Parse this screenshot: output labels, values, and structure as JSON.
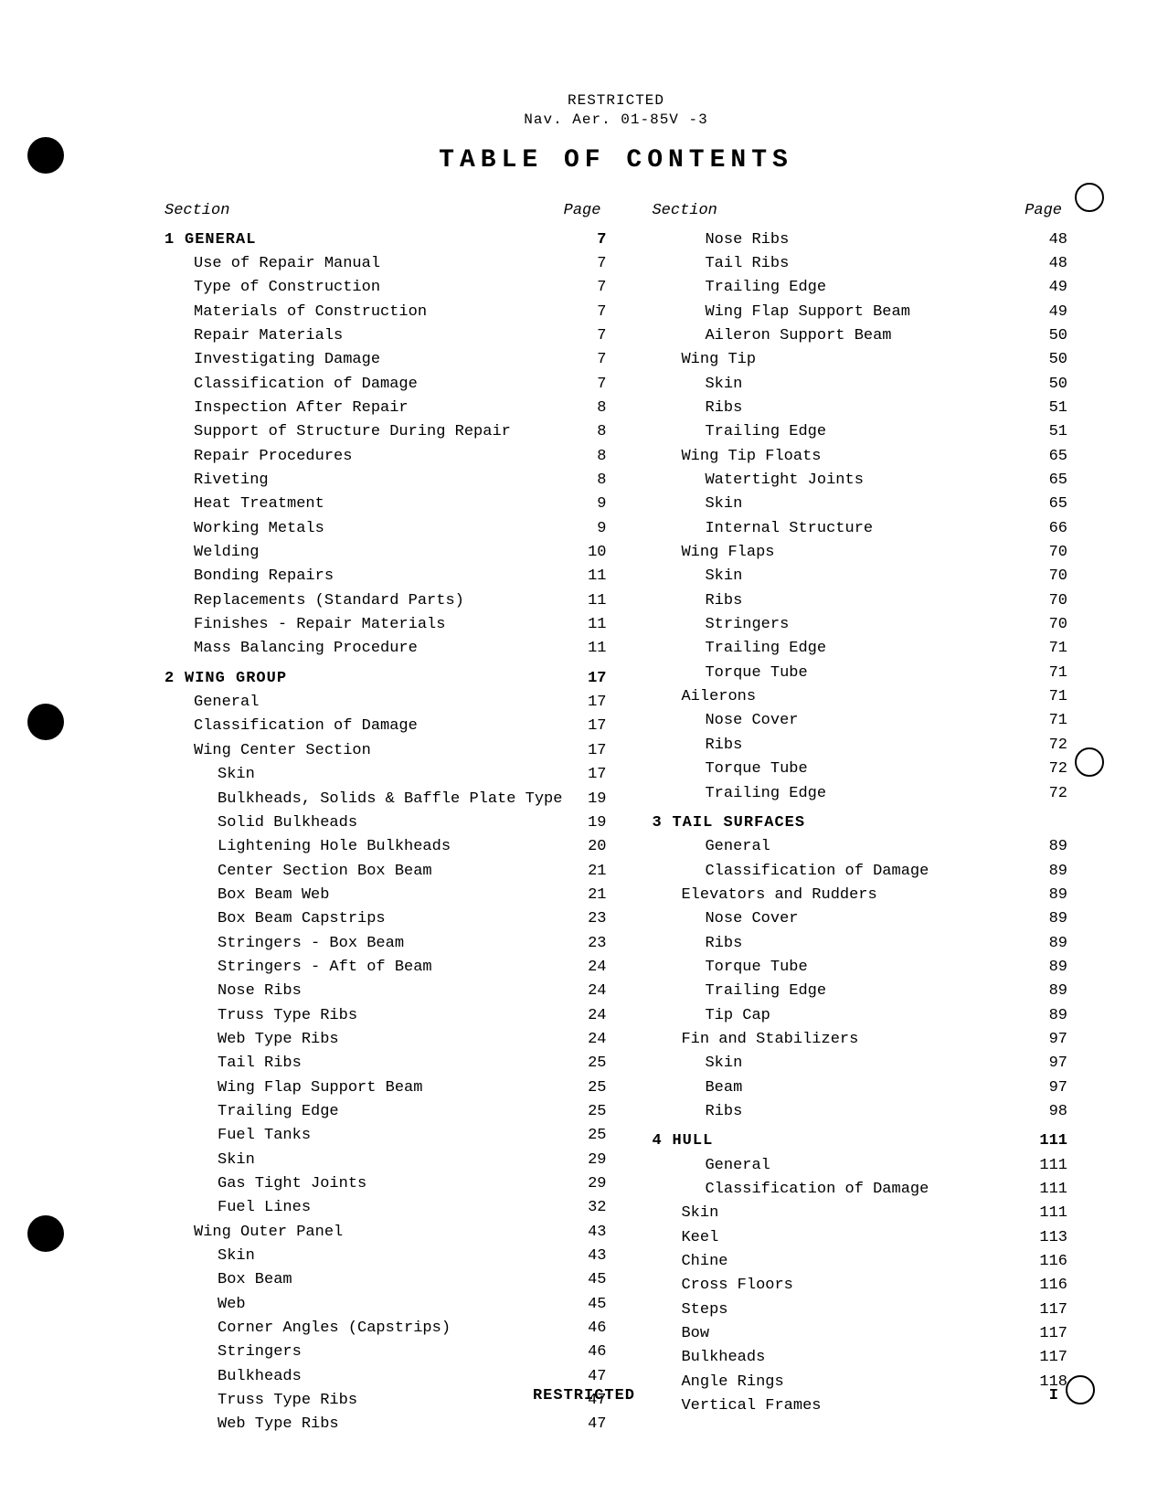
{
  "header": {
    "classification_top": "RESTRICTED",
    "doc_ref": "Nav. Aer. 01-85V -3",
    "title": "TABLE OF CONTENTS",
    "col_section": "Section",
    "col_page": "Page",
    "classification_bottom": "RESTRICTED",
    "page_roman": "I"
  },
  "left_col": [
    {
      "type": "section",
      "num": "1",
      "label": "GENERAL",
      "page": "7"
    },
    {
      "type": "entry",
      "indent": 1,
      "label": "Use of Repair Manual",
      "page": "7"
    },
    {
      "type": "entry",
      "indent": 1,
      "label": "Type of Construction",
      "page": "7"
    },
    {
      "type": "entry",
      "indent": 1,
      "label": "Materials of Construction",
      "page": "7"
    },
    {
      "type": "entry",
      "indent": 1,
      "label": "Repair Materials",
      "page": "7"
    },
    {
      "type": "entry",
      "indent": 1,
      "label": "Investigating Damage",
      "page": "7"
    },
    {
      "type": "entry",
      "indent": 1,
      "label": "Classification of Damage",
      "page": "7"
    },
    {
      "type": "entry",
      "indent": 1,
      "label": "Inspection After Repair",
      "page": "8"
    },
    {
      "type": "entry",
      "indent": 1,
      "label": "Support of Structure During Repair",
      "page": "8"
    },
    {
      "type": "entry",
      "indent": 1,
      "label": "Repair Procedures",
      "page": "8"
    },
    {
      "type": "entry",
      "indent": 1,
      "label": "Riveting",
      "page": "8"
    },
    {
      "type": "entry",
      "indent": 1,
      "label": "Heat Treatment",
      "page": "9"
    },
    {
      "type": "entry",
      "indent": 1,
      "label": "Working Metals",
      "page": "9"
    },
    {
      "type": "entry",
      "indent": 1,
      "label": "Welding",
      "page": "10"
    },
    {
      "type": "entry",
      "indent": 1,
      "label": "Bonding Repairs",
      "page": "11"
    },
    {
      "type": "entry",
      "indent": 1,
      "label": "Replacements (Standard Parts)",
      "page": "11"
    },
    {
      "type": "entry",
      "indent": 1,
      "label": "Finishes - Repair Materials",
      "page": "11"
    },
    {
      "type": "entry",
      "indent": 1,
      "label": "Mass Balancing Procedure",
      "page": "11"
    },
    {
      "type": "section",
      "num": "2",
      "label": "WING GROUP",
      "page": "17"
    },
    {
      "type": "entry",
      "indent": 1,
      "label": "General",
      "page": "17"
    },
    {
      "type": "entry",
      "indent": 1,
      "label": "Classification of Damage",
      "page": "17"
    },
    {
      "type": "entry",
      "indent": 1,
      "label": "Wing Center Section",
      "page": "17"
    },
    {
      "type": "entry",
      "indent": 2,
      "label": "Skin",
      "page": "17"
    },
    {
      "type": "entry",
      "indent": 2,
      "label": "Bulkheads, Solids & Baffle Plate Type",
      "page": "19"
    },
    {
      "type": "entry",
      "indent": 2,
      "label": "Solid Bulkheads",
      "page": "19"
    },
    {
      "type": "entry",
      "indent": 2,
      "label": "Lightening Hole Bulkheads",
      "page": "20"
    },
    {
      "type": "entry",
      "indent": 2,
      "label": "Center Section Box Beam",
      "page": "21"
    },
    {
      "type": "entry",
      "indent": 2,
      "label": "Box Beam Web",
      "page": "21"
    },
    {
      "type": "entry",
      "indent": 2,
      "label": "Box Beam Capstrips",
      "page": "23"
    },
    {
      "type": "entry",
      "indent": 2,
      "label": "Stringers - Box Beam",
      "page": "23"
    },
    {
      "type": "entry",
      "indent": 2,
      "label": "Stringers - Aft of Beam",
      "page": "24"
    },
    {
      "type": "entry",
      "indent": 2,
      "label": "Nose Ribs",
      "page": "24"
    },
    {
      "type": "entry",
      "indent": 2,
      "label": "Truss Type Ribs",
      "page": "24"
    },
    {
      "type": "entry",
      "indent": 2,
      "label": "Web Type Ribs",
      "page": "24"
    },
    {
      "type": "entry",
      "indent": 2,
      "label": "Tail Ribs",
      "page": "25"
    },
    {
      "type": "entry",
      "indent": 2,
      "label": "Wing Flap Support Beam",
      "page": "25"
    },
    {
      "type": "entry",
      "indent": 2,
      "label": "Trailing Edge",
      "page": "25"
    },
    {
      "type": "entry",
      "indent": 2,
      "label": "Fuel Tanks",
      "page": "25"
    },
    {
      "type": "entry",
      "indent": 2,
      "label": "Skin",
      "page": "29"
    },
    {
      "type": "entry",
      "indent": 2,
      "label": "Gas Tight Joints",
      "page": "29"
    },
    {
      "type": "entry",
      "indent": 2,
      "label": "Fuel Lines",
      "page": "32"
    },
    {
      "type": "entry",
      "indent": 1,
      "label": "Wing Outer Panel",
      "page": "43"
    },
    {
      "type": "entry",
      "indent": 2,
      "label": "Skin",
      "page": "43"
    },
    {
      "type": "entry",
      "indent": 2,
      "label": "Box Beam",
      "page": "45"
    },
    {
      "type": "entry",
      "indent": 2,
      "label": "Web",
      "page": "45"
    },
    {
      "type": "entry",
      "indent": 2,
      "label": "Corner Angles (Capstrips)",
      "page": "46"
    },
    {
      "type": "entry",
      "indent": 2,
      "label": "Stringers",
      "page": "46"
    },
    {
      "type": "entry",
      "indent": 2,
      "label": "Bulkheads",
      "page": "47"
    },
    {
      "type": "entry",
      "indent": 2,
      "label": "Truss Type Ribs",
      "page": "47"
    },
    {
      "type": "entry",
      "indent": 2,
      "label": "Web Type Ribs",
      "page": "47"
    }
  ],
  "right_col": [
    {
      "type": "entry",
      "indent": 2,
      "label": "Nose Ribs",
      "page": "48"
    },
    {
      "type": "entry",
      "indent": 2,
      "label": "Tail Ribs",
      "page": "48"
    },
    {
      "type": "entry",
      "indent": 2,
      "label": "Trailing Edge",
      "page": "49"
    },
    {
      "type": "entry",
      "indent": 2,
      "label": "Wing Flap Support Beam",
      "page": "49"
    },
    {
      "type": "entry",
      "indent": 2,
      "label": "Aileron Support Beam",
      "page": "50"
    },
    {
      "type": "entry",
      "indent": 1,
      "label": "Wing Tip",
      "page": "50"
    },
    {
      "type": "entry",
      "indent": 2,
      "label": "Skin",
      "page": "50"
    },
    {
      "type": "entry",
      "indent": 2,
      "label": "Ribs",
      "page": "51"
    },
    {
      "type": "entry",
      "indent": 2,
      "label": "Trailing Edge",
      "page": "51"
    },
    {
      "type": "entry",
      "indent": 1,
      "label": "Wing Tip Floats",
      "page": "65"
    },
    {
      "type": "entry",
      "indent": 2,
      "label": "Watertight Joints",
      "page": "65"
    },
    {
      "type": "entry",
      "indent": 2,
      "label": "Skin",
      "page": "65"
    },
    {
      "type": "entry",
      "indent": 2,
      "label": "Internal Structure",
      "page": "66"
    },
    {
      "type": "entry",
      "indent": 1,
      "label": "Wing Flaps",
      "page": "70"
    },
    {
      "type": "entry",
      "indent": 2,
      "label": "Skin",
      "page": "70"
    },
    {
      "type": "entry",
      "indent": 2,
      "label": "Ribs",
      "page": "70"
    },
    {
      "type": "entry",
      "indent": 2,
      "label": "Stringers",
      "page": "70"
    },
    {
      "type": "entry",
      "indent": 2,
      "label": "Trailing Edge",
      "page": "71"
    },
    {
      "type": "entry",
      "indent": 2,
      "label": "Torque Tube",
      "page": "71"
    },
    {
      "type": "entry",
      "indent": 1,
      "label": "Ailerons",
      "page": "71"
    },
    {
      "type": "entry",
      "indent": 2,
      "label": "Nose Cover",
      "page": "71"
    },
    {
      "type": "entry",
      "indent": 2,
      "label": "Ribs",
      "page": "72"
    },
    {
      "type": "entry",
      "indent": 2,
      "label": "Torque Tube",
      "page": "72"
    },
    {
      "type": "entry",
      "indent": 2,
      "label": "Trailing Edge",
      "page": "72"
    },
    {
      "type": "section",
      "num": "3",
      "label": "TAIL SURFACES",
      "page": ""
    },
    {
      "type": "entry",
      "indent": 2,
      "label": "General",
      "page": "89"
    },
    {
      "type": "entry",
      "indent": 2,
      "label": "Classification of Damage",
      "page": "89"
    },
    {
      "type": "entry",
      "indent": 1,
      "label": "Elevators and Rudders",
      "page": "89"
    },
    {
      "type": "entry",
      "indent": 2,
      "label": "Nose Cover",
      "page": "89"
    },
    {
      "type": "entry",
      "indent": 2,
      "label": "Ribs",
      "page": "89"
    },
    {
      "type": "entry",
      "indent": 2,
      "label": "Torque Tube",
      "page": "89"
    },
    {
      "type": "entry",
      "indent": 2,
      "label": "Trailing Edge",
      "page": "89"
    },
    {
      "type": "entry",
      "indent": 2,
      "label": "Tip Cap",
      "page": "89"
    },
    {
      "type": "entry",
      "indent": 1,
      "label": "Fin and Stabilizers",
      "page": "97"
    },
    {
      "type": "entry",
      "indent": 2,
      "label": "Skin",
      "page": "97"
    },
    {
      "type": "entry",
      "indent": 2,
      "label": "Beam",
      "page": "97"
    },
    {
      "type": "entry",
      "indent": 2,
      "label": "Ribs",
      "page": "98"
    },
    {
      "type": "section",
      "num": "4",
      "label": "HULL",
      "page": "111"
    },
    {
      "type": "entry",
      "indent": 2,
      "label": "General",
      "page": "111"
    },
    {
      "type": "entry",
      "indent": 2,
      "label": "Classification of Damage",
      "page": "111"
    },
    {
      "type": "entry",
      "indent": 1,
      "label": "Skin",
      "page": "111"
    },
    {
      "type": "entry",
      "indent": 1,
      "label": "Keel",
      "page": "113"
    },
    {
      "type": "entry",
      "indent": 1,
      "label": "Chine",
      "page": "116"
    },
    {
      "type": "entry",
      "indent": 1,
      "label": "Cross Floors",
      "page": "116"
    },
    {
      "type": "entry",
      "indent": 1,
      "label": "Steps",
      "page": "117"
    },
    {
      "type": "entry",
      "indent": 1,
      "label": "Bow",
      "page": "117"
    },
    {
      "type": "entry",
      "indent": 1,
      "label": "Bulkheads",
      "page": "117"
    },
    {
      "type": "entry",
      "indent": 1,
      "label": "Angle Rings",
      "page": "118"
    },
    {
      "type": "entry",
      "indent": 1,
      "label": "Vertical Frames",
      "page": ""
    }
  ]
}
